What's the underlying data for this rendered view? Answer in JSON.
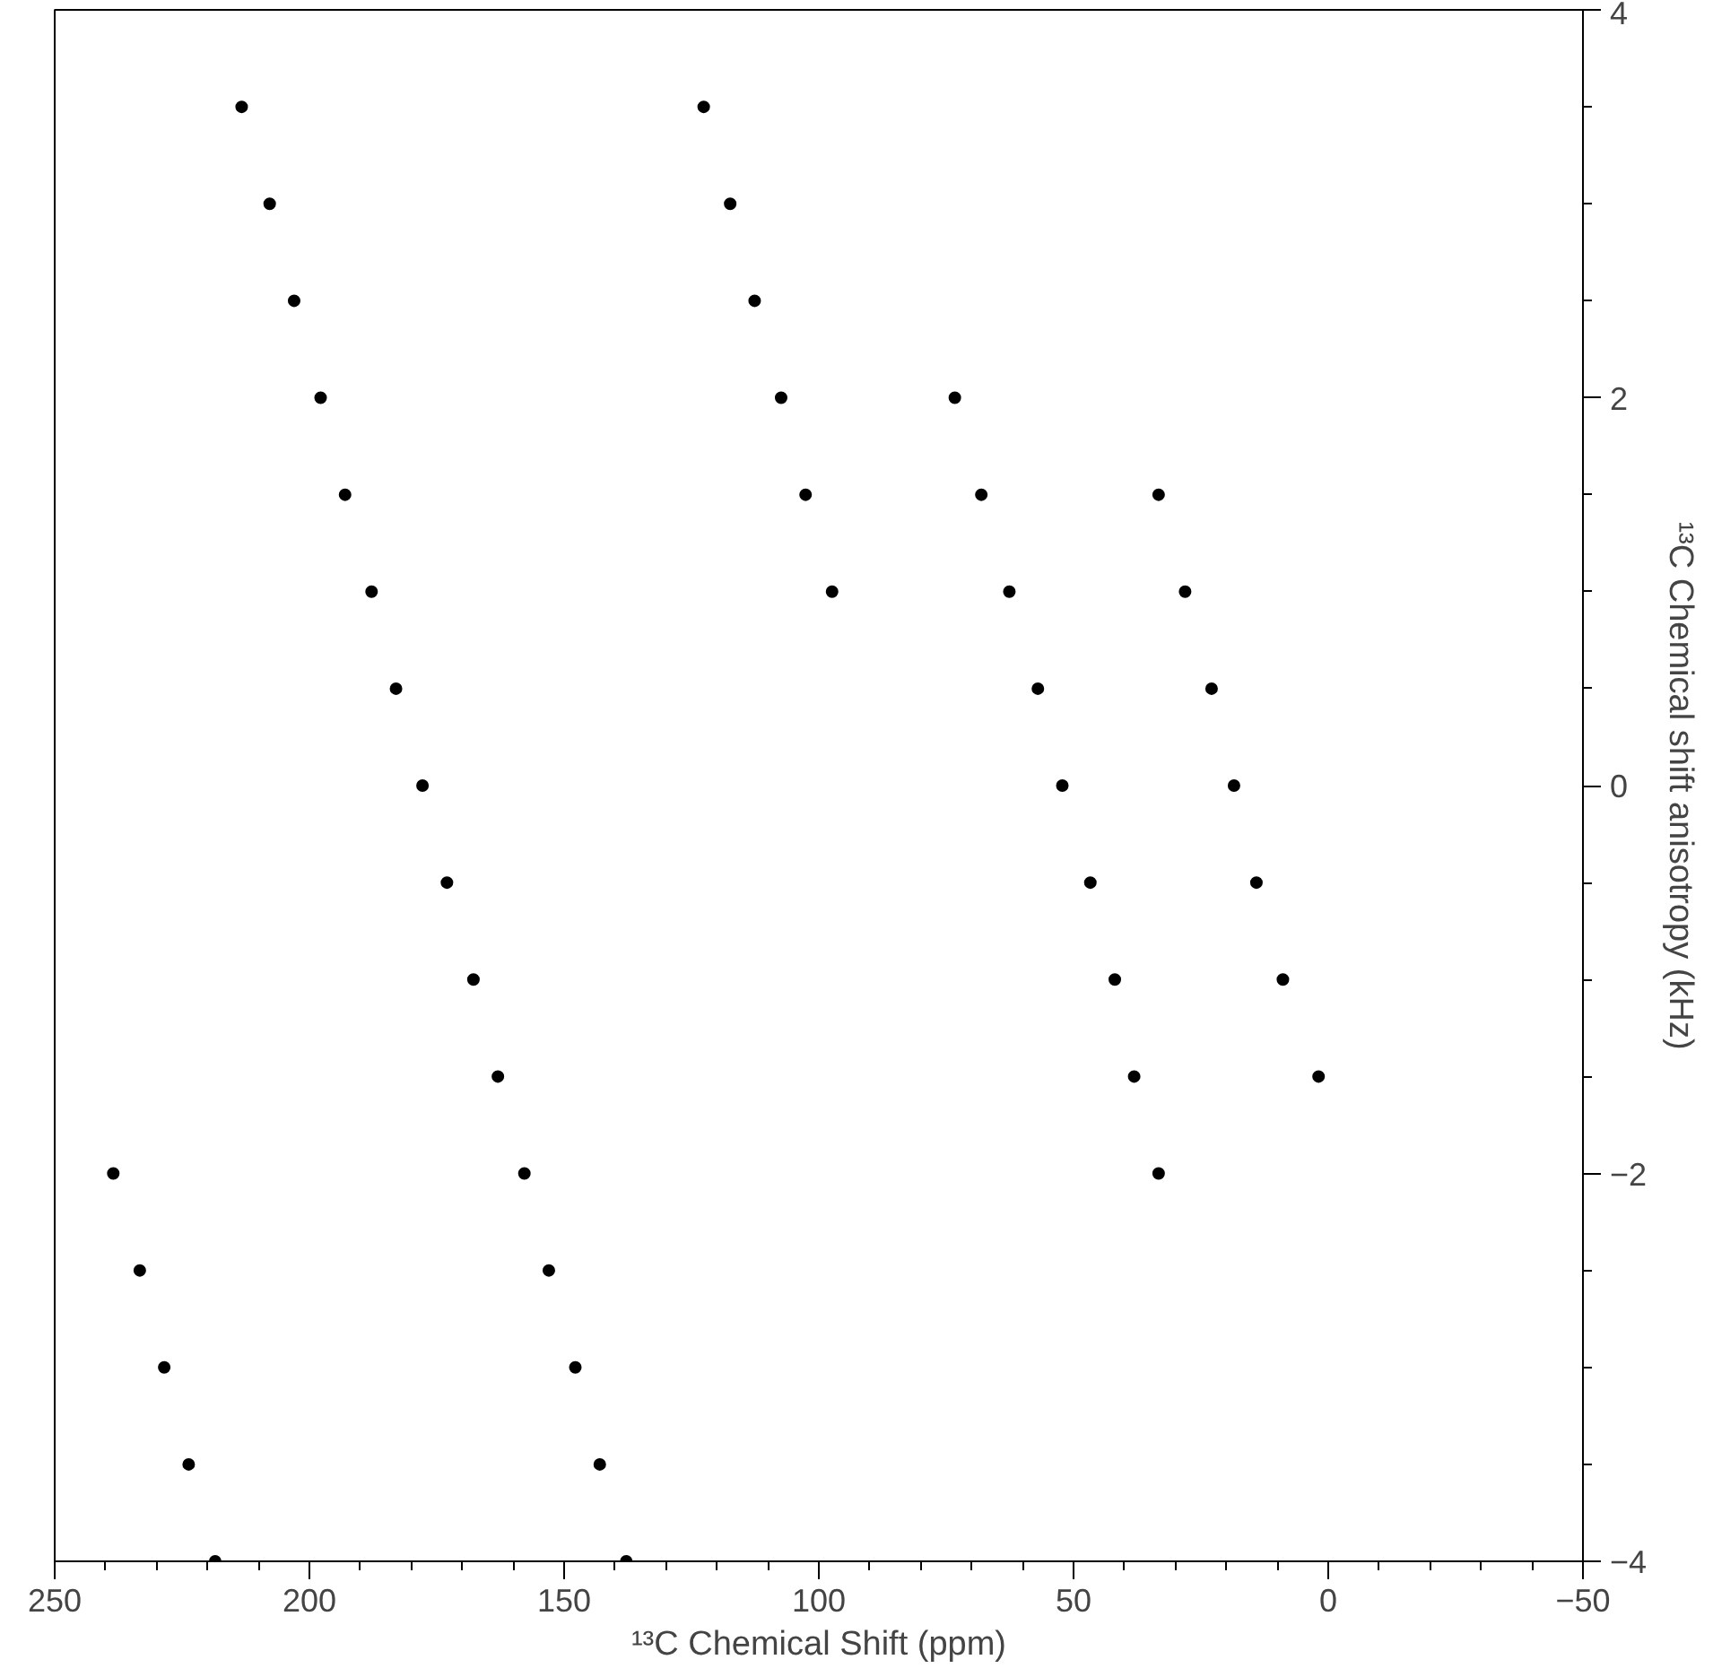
{
  "chart_data": {
    "type": "scatter",
    "xlabel": "¹³C Chemical Shift (ppm)",
    "ylabel": "¹³C Chemical shift anisotropy (kHz)",
    "xlim": [
      250,
      -50
    ],
    "xticks": [
      250,
      200,
      150,
      100,
      50,
      0,
      -50
    ],
    "ylim": [
      -4,
      4
    ],
    "yticks": [
      -4,
      -2,
      0,
      2,
      4
    ],
    "grid": false,
    "marker": "circle",
    "series": [
      {
        "color": "#000000",
        "x": [
          213.3,
          207.8,
          203,
          197.8,
          193,
          187.8,
          183,
          177.8,
          173,
          167.8,
          163,
          157.8,
          153,
          147.8,
          143,
          137.8
        ],
        "values": [
          3.5,
          3,
          2.5,
          2,
          1.5,
          1,
          0.5,
          0,
          -0.5,
          -1,
          -1.5,
          -2,
          -2.5,
          -3,
          -3.5,
          -4
        ]
      },
      {
        "color": "#000000",
        "x": [
          238.5,
          233.3,
          228.5,
          223.7,
          218.5
        ],
        "values": [
          -2,
          -2.5,
          -3,
          -3.5,
          -4
        ]
      },
      {
        "color": "#000000",
        "x": [
          122.6,
          117.4,
          112.6,
          107.4,
          102.6,
          97.4,
          73.3
        ],
        "values": [
          3.5,
          3,
          2.5,
          2,
          1.5,
          1,
          2
        ]
      },
      {
        "color": "#000000",
        "x": [
          68.1,
          62.6,
          57,
          52.2,
          46.7,
          41.9,
          38.1,
          33.3
        ],
        "values": [
          1.5,
          1,
          0.5,
          0,
          -0.5,
          -1,
          -1.5,
          -2
        ]
      },
      {
        "color": "#000000",
        "x": [
          33.3,
          28.1,
          22.9,
          18.5,
          14.1,
          8.9,
          1.9
        ],
        "values": [
          1.5,
          1,
          0.5,
          0,
          -0.5,
          -1,
          -1.5
        ]
      }
    ]
  }
}
